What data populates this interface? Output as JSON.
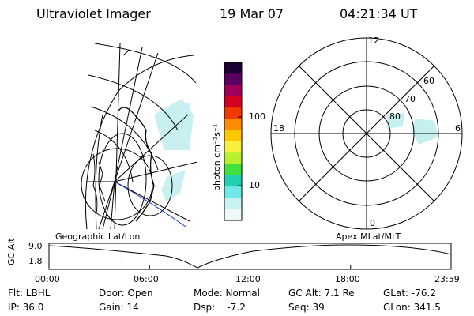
{
  "header": {
    "instrument": "Ultraviolet Imager",
    "date": "19 Mar 07",
    "time": "04:21:34 UT"
  },
  "colorbar": {
    "unit_label": "photon cm⁻²s⁻¹",
    "ticks": [
      "100",
      "10"
    ],
    "colors": [
      "#1a0033",
      "#5a0060",
      "#a0005a",
      "#d40020",
      "#f03a00",
      "#ff8c00",
      "#ffc800",
      "#f8f040",
      "#b8f030",
      "#40e040",
      "#20d0b0",
      "#70e8e8",
      "#c8f2f2",
      "#eefafa"
    ]
  },
  "polar_plot": {
    "mlt_labels": {
      "top": "12",
      "left": "18",
      "right": "6",
      "bottom": "0"
    },
    "lat_labels": [
      "60",
      "70",
      "80"
    ]
  },
  "left_map": {
    "title": "Geographic Lat/Lon"
  },
  "right_map": {
    "title": "Apex MLat/MLT"
  },
  "timeline": {
    "ylabel": "GC Alt",
    "ymax": "9.0",
    "ymin": "1.8",
    "xticks": [
      "00:00",
      "06:00",
      "12:00",
      "18:00",
      "23:59"
    ],
    "marker_hours": 4.36
  },
  "info": {
    "filter": "Flt: LBHL",
    "door": "Door: Open",
    "mode": "Mode: Normal",
    "gc_alt": "GC Alt: 7.1 Re",
    "glat": "GLat: -76.2",
    "ip": "IP: 36.0",
    "gain": "Gain: 14",
    "dsp": "Dsp:    -7.2",
    "seq": "Seq: 39",
    "glon": "GLon: 341.5"
  }
}
